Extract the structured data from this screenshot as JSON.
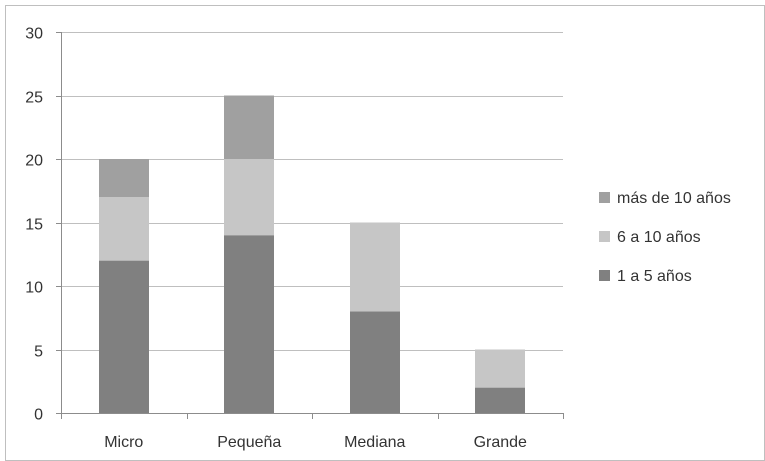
{
  "chart_data": {
    "type": "bar",
    "stacked": true,
    "title": "",
    "xlabel": "",
    "ylabel": "",
    "ylim": [
      0,
      30
    ],
    "yticks": [
      0,
      5,
      10,
      15,
      20,
      25,
      30
    ],
    "grid": true,
    "legend_position": "right",
    "categories": [
      "Micro",
      "Pequeña",
      "Mediana",
      "Grande"
    ],
    "series": [
      {
        "name": "1 a 5 años",
        "values": [
          12,
          14,
          8,
          2
        ],
        "color": "#808080"
      },
      {
        "name": "6 a 10 años",
        "values": [
          5,
          6,
          7,
          3
        ],
        "color": "#c6c6c6"
      },
      {
        "name": "más de 10 años",
        "values": [
          3,
          5,
          0,
          0
        ],
        "color": "#a0a0a0"
      }
    ]
  }
}
